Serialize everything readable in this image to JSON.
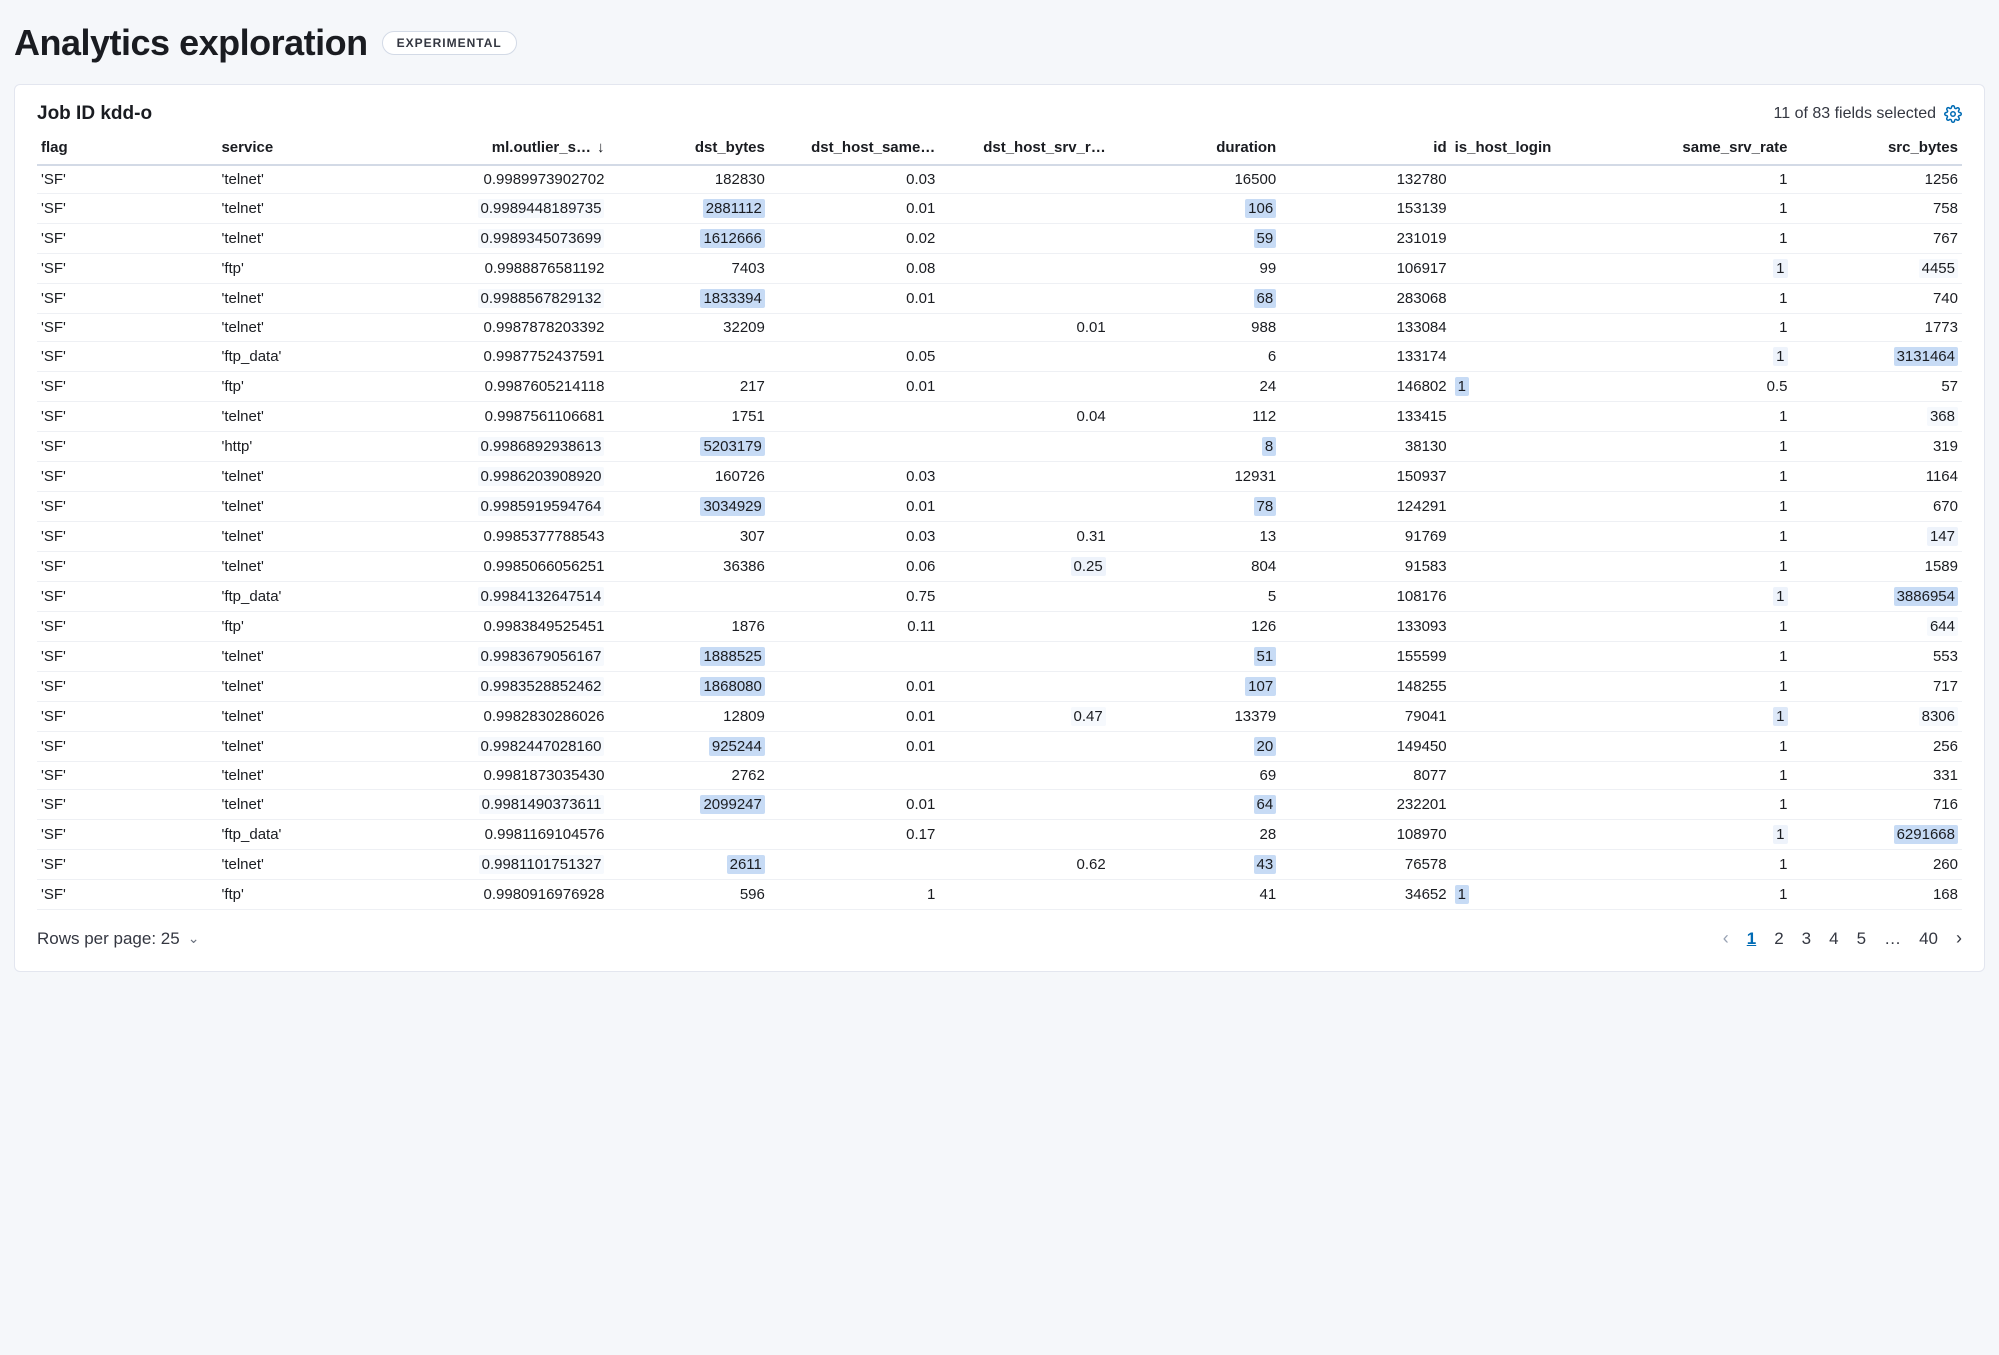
{
  "page": {
    "title": "Analytics exploration",
    "badge": "EXPERIMENTAL"
  },
  "panel": {
    "job_label": "Job ID kdd-o",
    "fields_selected": "11 of 83 fields selected"
  },
  "colors": {
    "hl_strong": "#c7dbf5",
    "hl_med": "#dde8f8",
    "hl_light": "#eef3fb",
    "hl_faint": "#f6f9fd"
  },
  "columns": [
    {
      "key": "flag",
      "label": "flag",
      "type": "text"
    },
    {
      "key": "service",
      "label": "service",
      "type": "text"
    },
    {
      "key": "outlier",
      "label": "ml.outlier_s…",
      "type": "num",
      "sorted": "desc"
    },
    {
      "key": "dst_bytes",
      "label": "dst_bytes",
      "type": "num"
    },
    {
      "key": "dst_same",
      "label": "dst_host_same…",
      "type": "num"
    },
    {
      "key": "dst_srv",
      "label": "dst_host_srv_r…",
      "type": "num"
    },
    {
      "key": "duration",
      "label": "duration",
      "type": "num"
    },
    {
      "key": "id",
      "label": "id",
      "type": "num"
    },
    {
      "key": "is_host",
      "label": "is_host_login",
      "type": "text"
    },
    {
      "key": "same_srv",
      "label": "same_srv_rate",
      "type": "num"
    },
    {
      "key": "src_bytes",
      "label": "src_bytes",
      "type": "num"
    }
  ],
  "rows": [
    {
      "flag": "'SF'",
      "service": "'telnet'",
      "outlier": {
        "v": "0.9989973902702"
      },
      "dst_bytes": {
        "v": "182830"
      },
      "dst_same": {
        "v": "0.03"
      },
      "dst_srv": {
        "v": ""
      },
      "duration": {
        "v": "16500"
      },
      "id": {
        "v": "132780"
      },
      "is_host": {
        "v": ""
      },
      "same_srv": {
        "v": "1"
      },
      "src_bytes": {
        "v": "1256"
      }
    },
    {
      "flag": "'SF'",
      "service": "'telnet'",
      "outlier": {
        "v": "0.9989448189735",
        "hl": "faint"
      },
      "dst_bytes": {
        "v": "2881112",
        "hl": "strong"
      },
      "dst_same": {
        "v": "0.01"
      },
      "dst_srv": {
        "v": ""
      },
      "duration": {
        "v": "106",
        "hl": "strong"
      },
      "id": {
        "v": "153139"
      },
      "is_host": {
        "v": ""
      },
      "same_srv": {
        "v": "1"
      },
      "src_bytes": {
        "v": "758"
      }
    },
    {
      "flag": "'SF'",
      "service": "'telnet'",
      "outlier": {
        "v": "0.9989345073699",
        "hl": "faint"
      },
      "dst_bytes": {
        "v": "1612666",
        "hl": "strong"
      },
      "dst_same": {
        "v": "0.02"
      },
      "dst_srv": {
        "v": ""
      },
      "duration": {
        "v": "59",
        "hl": "strong"
      },
      "id": {
        "v": "231019"
      },
      "is_host": {
        "v": ""
      },
      "same_srv": {
        "v": "1"
      },
      "src_bytes": {
        "v": "767"
      }
    },
    {
      "flag": "'SF'",
      "service": "'ftp'",
      "outlier": {
        "v": "0.9988876581192"
      },
      "dst_bytes": {
        "v": "7403"
      },
      "dst_same": {
        "v": "0.08"
      },
      "dst_srv": {
        "v": ""
      },
      "duration": {
        "v": "99"
      },
      "id": {
        "v": "106917"
      },
      "is_host": {
        "v": ""
      },
      "same_srv": {
        "v": "1",
        "hl": "light"
      },
      "src_bytes": {
        "v": "4455",
        "hl": "faint"
      }
    },
    {
      "flag": "'SF'",
      "service": "'telnet'",
      "outlier": {
        "v": "0.9988567829132",
        "hl": "faint"
      },
      "dst_bytes": {
        "v": "1833394",
        "hl": "strong"
      },
      "dst_same": {
        "v": "0.01"
      },
      "dst_srv": {
        "v": ""
      },
      "duration": {
        "v": "68",
        "hl": "strong"
      },
      "id": {
        "v": "283068"
      },
      "is_host": {
        "v": ""
      },
      "same_srv": {
        "v": "1"
      },
      "src_bytes": {
        "v": "740"
      }
    },
    {
      "flag": "'SF'",
      "service": "'telnet'",
      "outlier": {
        "v": "0.9987878203392"
      },
      "dst_bytes": {
        "v": "32209"
      },
      "dst_same": {
        "v": ""
      },
      "dst_srv": {
        "v": "0.01"
      },
      "duration": {
        "v": "988"
      },
      "id": {
        "v": "133084"
      },
      "is_host": {
        "v": ""
      },
      "same_srv": {
        "v": "1"
      },
      "src_bytes": {
        "v": "1773"
      }
    },
    {
      "flag": "'SF'",
      "service": "'ftp_data'",
      "outlier": {
        "v": "0.9987752437591"
      },
      "dst_bytes": {
        "v": ""
      },
      "dst_same": {
        "v": "0.05"
      },
      "dst_srv": {
        "v": ""
      },
      "duration": {
        "v": "6"
      },
      "id": {
        "v": "133174"
      },
      "is_host": {
        "v": ""
      },
      "same_srv": {
        "v": "1",
        "hl": "light"
      },
      "src_bytes": {
        "v": "3131464",
        "hl": "strong"
      }
    },
    {
      "flag": "'SF'",
      "service": "'ftp'",
      "outlier": {
        "v": "0.9987605214118"
      },
      "dst_bytes": {
        "v": "217"
      },
      "dst_same": {
        "v": "0.01"
      },
      "dst_srv": {
        "v": ""
      },
      "duration": {
        "v": "24"
      },
      "id": {
        "v": "146802"
      },
      "is_host": {
        "v": "1",
        "hl": "strong"
      },
      "same_srv": {
        "v": "0.5"
      },
      "src_bytes": {
        "v": "57"
      }
    },
    {
      "flag": "'SF'",
      "service": "'telnet'",
      "outlier": {
        "v": "0.9987561106681"
      },
      "dst_bytes": {
        "v": "1751"
      },
      "dst_same": {
        "v": ""
      },
      "dst_srv": {
        "v": "0.04"
      },
      "duration": {
        "v": "112"
      },
      "id": {
        "v": "133415"
      },
      "is_host": {
        "v": ""
      },
      "same_srv": {
        "v": "1"
      },
      "src_bytes": {
        "v": "368",
        "hl": "faint"
      }
    },
    {
      "flag": "'SF'",
      "service": "'http'",
      "outlier": {
        "v": "0.9986892938613",
        "hl": "faint"
      },
      "dst_bytes": {
        "v": "5203179",
        "hl": "strong"
      },
      "dst_same": {
        "v": ""
      },
      "dst_srv": {
        "v": ""
      },
      "duration": {
        "v": "8",
        "hl": "strong"
      },
      "id": {
        "v": "38130"
      },
      "is_host": {
        "v": ""
      },
      "same_srv": {
        "v": "1"
      },
      "src_bytes": {
        "v": "319"
      }
    },
    {
      "flag": "'SF'",
      "service": "'telnet'",
      "outlier": {
        "v": "0.9986203908920",
        "hl": "faint"
      },
      "dst_bytes": {
        "v": "160726"
      },
      "dst_same": {
        "v": "0.03"
      },
      "dst_srv": {
        "v": ""
      },
      "duration": {
        "v": "12931"
      },
      "id": {
        "v": "150937"
      },
      "is_host": {
        "v": ""
      },
      "same_srv": {
        "v": "1"
      },
      "src_bytes": {
        "v": "1164"
      }
    },
    {
      "flag": "'SF'",
      "service": "'telnet'",
      "outlier": {
        "v": "0.9985919594764",
        "hl": "faint"
      },
      "dst_bytes": {
        "v": "3034929",
        "hl": "strong"
      },
      "dst_same": {
        "v": "0.01"
      },
      "dst_srv": {
        "v": ""
      },
      "duration": {
        "v": "78",
        "hl": "strong"
      },
      "id": {
        "v": "124291"
      },
      "is_host": {
        "v": ""
      },
      "same_srv": {
        "v": "1"
      },
      "src_bytes": {
        "v": "670"
      }
    },
    {
      "flag": "'SF'",
      "service": "'telnet'",
      "outlier": {
        "v": "0.9985377788543"
      },
      "dst_bytes": {
        "v": "307"
      },
      "dst_same": {
        "v": "0.03"
      },
      "dst_srv": {
        "v": "0.31"
      },
      "duration": {
        "v": "13"
      },
      "id": {
        "v": "91769"
      },
      "is_host": {
        "v": ""
      },
      "same_srv": {
        "v": "1"
      },
      "src_bytes": {
        "v": "147",
        "hl": "light"
      }
    },
    {
      "flag": "'SF'",
      "service": "'telnet'",
      "outlier": {
        "v": "0.9985066056251"
      },
      "dst_bytes": {
        "v": "36386"
      },
      "dst_same": {
        "v": "0.06"
      },
      "dst_srv": {
        "v": "0.25",
        "hl": "light"
      },
      "duration": {
        "v": "804"
      },
      "id": {
        "v": "91583"
      },
      "is_host": {
        "v": ""
      },
      "same_srv": {
        "v": "1"
      },
      "src_bytes": {
        "v": "1589"
      }
    },
    {
      "flag": "'SF'",
      "service": "'ftp_data'",
      "outlier": {
        "v": "0.9984132647514",
        "hl": "faint"
      },
      "dst_bytes": {
        "v": ""
      },
      "dst_same": {
        "v": "0.75"
      },
      "dst_srv": {
        "v": ""
      },
      "duration": {
        "v": "5"
      },
      "id": {
        "v": "108176"
      },
      "is_host": {
        "v": ""
      },
      "same_srv": {
        "v": "1",
        "hl": "light"
      },
      "src_bytes": {
        "v": "3886954",
        "hl": "strong"
      }
    },
    {
      "flag": "'SF'",
      "service": "'ftp'",
      "outlier": {
        "v": "0.9983849525451"
      },
      "dst_bytes": {
        "v": "1876"
      },
      "dst_same": {
        "v": "0.11"
      },
      "dst_srv": {
        "v": ""
      },
      "duration": {
        "v": "126"
      },
      "id": {
        "v": "133093"
      },
      "is_host": {
        "v": ""
      },
      "same_srv": {
        "v": "1"
      },
      "src_bytes": {
        "v": "644",
        "hl": "faint"
      }
    },
    {
      "flag": "'SF'",
      "service": "'telnet'",
      "outlier": {
        "v": "0.9983679056167",
        "hl": "faint"
      },
      "dst_bytes": {
        "v": "1888525",
        "hl": "strong"
      },
      "dst_same": {
        "v": ""
      },
      "dst_srv": {
        "v": ""
      },
      "duration": {
        "v": "51",
        "hl": "strong"
      },
      "id": {
        "v": "155599"
      },
      "is_host": {
        "v": ""
      },
      "same_srv": {
        "v": "1"
      },
      "src_bytes": {
        "v": "553"
      }
    },
    {
      "flag": "'SF'",
      "service": "'telnet'",
      "outlier": {
        "v": "0.9983528852462",
        "hl": "faint"
      },
      "dst_bytes": {
        "v": "1868080",
        "hl": "strong"
      },
      "dst_same": {
        "v": "0.01"
      },
      "dst_srv": {
        "v": ""
      },
      "duration": {
        "v": "107",
        "hl": "strong"
      },
      "id": {
        "v": "148255"
      },
      "is_host": {
        "v": ""
      },
      "same_srv": {
        "v": "1"
      },
      "src_bytes": {
        "v": "717"
      }
    },
    {
      "flag": "'SF'",
      "service": "'telnet'",
      "outlier": {
        "v": "0.9982830286026"
      },
      "dst_bytes": {
        "v": "12809"
      },
      "dst_same": {
        "v": "0.01"
      },
      "dst_srv": {
        "v": "0.47",
        "hl": "faint"
      },
      "duration": {
        "v": "13379"
      },
      "id": {
        "v": "79041"
      },
      "is_host": {
        "v": ""
      },
      "same_srv": {
        "v": "1",
        "hl": "med"
      },
      "src_bytes": {
        "v": "8306",
        "hl": "faint"
      }
    },
    {
      "flag": "'SF'",
      "service": "'telnet'",
      "outlier": {
        "v": "0.9982447028160",
        "hl": "faint"
      },
      "dst_bytes": {
        "v": "925244",
        "hl": "strong"
      },
      "dst_same": {
        "v": "0.01"
      },
      "dst_srv": {
        "v": ""
      },
      "duration": {
        "v": "20",
        "hl": "strong"
      },
      "id": {
        "v": "149450"
      },
      "is_host": {
        "v": ""
      },
      "same_srv": {
        "v": "1"
      },
      "src_bytes": {
        "v": "256"
      }
    },
    {
      "flag": "'SF'",
      "service": "'telnet'",
      "outlier": {
        "v": "0.9981873035430"
      },
      "dst_bytes": {
        "v": "2762"
      },
      "dst_same": {
        "v": ""
      },
      "dst_srv": {
        "v": ""
      },
      "duration": {
        "v": "69"
      },
      "id": {
        "v": "8077"
      },
      "is_host": {
        "v": ""
      },
      "same_srv": {
        "v": "1"
      },
      "src_bytes": {
        "v": "331"
      }
    },
    {
      "flag": "'SF'",
      "service": "'telnet'",
      "outlier": {
        "v": "0.9981490373611",
        "hl": "faint"
      },
      "dst_bytes": {
        "v": "2099247",
        "hl": "strong"
      },
      "dst_same": {
        "v": "0.01"
      },
      "dst_srv": {
        "v": ""
      },
      "duration": {
        "v": "64",
        "hl": "strong"
      },
      "id": {
        "v": "232201"
      },
      "is_host": {
        "v": ""
      },
      "same_srv": {
        "v": "1"
      },
      "src_bytes": {
        "v": "716"
      }
    },
    {
      "flag": "'SF'",
      "service": "'ftp_data'",
      "outlier": {
        "v": "0.9981169104576"
      },
      "dst_bytes": {
        "v": ""
      },
      "dst_same": {
        "v": "0.17"
      },
      "dst_srv": {
        "v": ""
      },
      "duration": {
        "v": "28"
      },
      "id": {
        "v": "108970"
      },
      "is_host": {
        "v": ""
      },
      "same_srv": {
        "v": "1",
        "hl": "light"
      },
      "src_bytes": {
        "v": "6291668",
        "hl": "strong"
      }
    },
    {
      "flag": "'SF'",
      "service": "'telnet'",
      "outlier": {
        "v": "0.9981101751327",
        "hl": "faint"
      },
      "dst_bytes": {
        "v": "2611",
        "hl": "strong"
      },
      "dst_same": {
        "v": ""
      },
      "dst_srv": {
        "v": "0.62"
      },
      "duration": {
        "v": "43",
        "hl": "strong"
      },
      "id": {
        "v": "76578"
      },
      "is_host": {
        "v": ""
      },
      "same_srv": {
        "v": "1"
      },
      "src_bytes": {
        "v": "260"
      }
    },
    {
      "flag": "'SF'",
      "service": "'ftp'",
      "outlier": {
        "v": "0.9980916976928"
      },
      "dst_bytes": {
        "v": "596"
      },
      "dst_same": {
        "v": "1"
      },
      "dst_srv": {
        "v": ""
      },
      "duration": {
        "v": "41"
      },
      "id": {
        "v": "34652"
      },
      "is_host": {
        "v": "1",
        "hl": "strong"
      },
      "same_srv": {
        "v": "1"
      },
      "src_bytes": {
        "v": "168"
      }
    }
  ],
  "footer": {
    "rows_per_page_label": "Rows per page: 25",
    "pages": [
      "1",
      "2",
      "3",
      "4",
      "5",
      "…",
      "40"
    ],
    "current_page": "1"
  }
}
